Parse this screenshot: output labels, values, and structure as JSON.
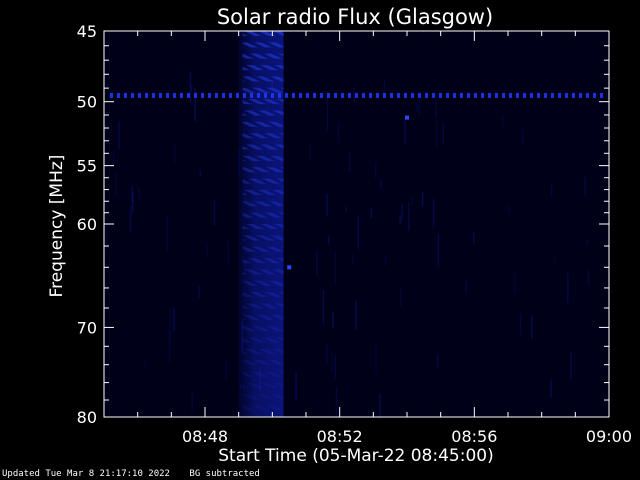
{
  "chart_data": {
    "type": "heatmap",
    "title": "Solar radio Flux (Glasgow)",
    "xlabel": "Start Time (05-Mar-22 08:45:00)",
    "ylabel": "Frequency [MHz]",
    "x_range": [
      "08:45",
      "09:00"
    ],
    "y_range": [
      45,
      80
    ],
    "y_scale": "log",
    "x_ticks": [
      "08:48",
      "08:52",
      "08:56",
      "09:00"
    ],
    "y_ticks": [
      45,
      50,
      55,
      60,
      70,
      80
    ],
    "colormap": [
      "#000000",
      "#000060",
      "#1020ff"
    ],
    "features": {
      "burst": {
        "start": "08:49:00",
        "end": "08:50:20",
        "freq_range": [
          45,
          80
        ]
      },
      "rfi_line_freq": 49.5,
      "spots": [
        {
          "time": "08:54:00",
          "freq": 51.2
        },
        {
          "time": "08:50:30",
          "freq": 64.0
        }
      ]
    }
  },
  "footer": {
    "updated": "Updated Tue Mar  8 21:17:10 2022",
    "note": "BG subtracted"
  }
}
